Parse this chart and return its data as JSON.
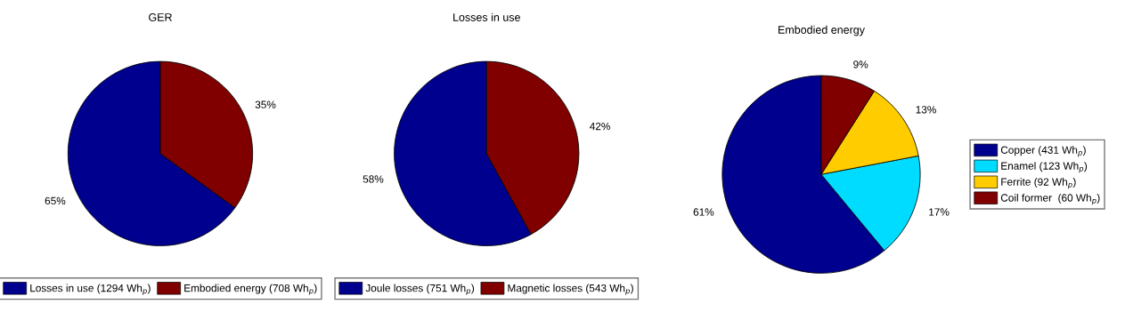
{
  "chart_data": [
    {
      "type": "pie",
      "title": "GER",
      "categories": [
        "Losses in use (1294 Wh$_{p}$)",
        "Embodied energy (708 Wh$_{p}$)"
      ],
      "values": [
        65,
        35
      ],
      "colors": [
        "#00008f",
        "#800000"
      ],
      "value_labels": [
        "65%",
        "35%"
      ],
      "legend": "bottom"
    },
    {
      "type": "pie",
      "title": "Losses in use",
      "categories": [
        "Joule losses (751 Wh$_{p}$)",
        "Magnetic losses (543 Wh$_{p}$)"
      ],
      "values": [
        58,
        42
      ],
      "colors": [
        "#00008f",
        "#800000"
      ],
      "value_labels": [
        "58%",
        "42%"
      ],
      "legend": "bottom"
    },
    {
      "type": "pie",
      "title": "Embodied energy",
      "categories": [
        "Copper (431 Wh$_{p}$)",
        "Enamel (123 Wh$_{p}$)",
        "Ferrite (92 Wh$_{p}$)",
        "Coil former  (60 Wh$_{p}$)"
      ],
      "values": [
        61,
        17,
        13,
        9
      ],
      "colors": [
        "#00008f",
        "#00dcff",
        "#ffcc00",
        "#800000"
      ],
      "value_labels": [
        "61%",
        "17%",
        "13%",
        "9%"
      ],
      "legend": "right"
    }
  ]
}
